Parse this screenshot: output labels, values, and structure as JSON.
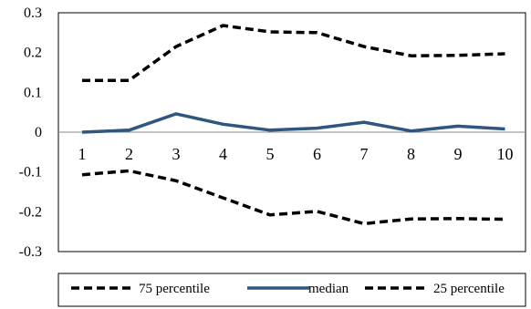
{
  "chart_data": {
    "type": "line",
    "categories": [
      "1",
      "2",
      "3",
      "4",
      "5",
      "6",
      "7",
      "8",
      "9",
      "10"
    ],
    "series": [
      {
        "name": "75 percentile",
        "values": [
          0.13,
          0.13,
          0.215,
          0.268,
          0.252,
          0.25,
          0.215,
          0.192,
          0.193,
          0.197
        ],
        "color": "#000000",
        "style": "dashed"
      },
      {
        "name": "median",
        "values": [
          0.0,
          0.005,
          0.046,
          0.02,
          0.005,
          0.01,
          0.025,
          0.003,
          0.015,
          0.008
        ],
        "color": "#2E5680",
        "style": "solid"
      },
      {
        "name": "25 percentile",
        "values": [
          -0.107,
          -0.097,
          -0.122,
          -0.165,
          -0.208,
          -0.199,
          -0.23,
          -0.218,
          -0.217,
          -0.219
        ],
        "color": "#000000",
        "style": "dashed"
      }
    ],
    "y_ticks": [
      "0.3",
      "0.2",
      "0.1",
      "0",
      "-0.1",
      "-0.2",
      "-0.3"
    ],
    "ylim": [
      -0.3,
      0.3
    ],
    "title": "",
    "xlabel": "",
    "ylabel": "",
    "grid": false,
    "legend": "bottom"
  }
}
